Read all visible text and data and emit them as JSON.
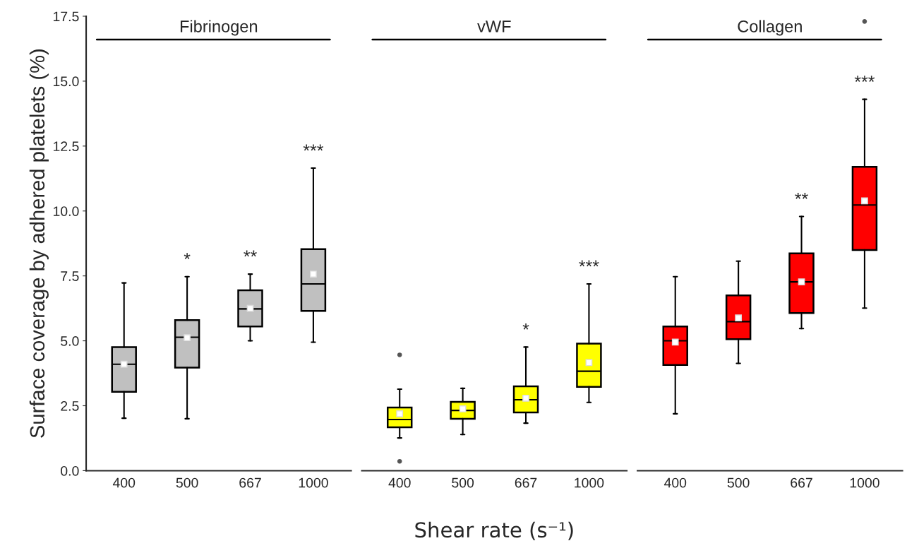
{
  "chart_data": [
    {
      "type": "box",
      "title": "Fibrinogen",
      "ylabel": "Surface coverage by adhered platelets (%)",
      "color": "#c0c0c0",
      "categories": [
        "400",
        "500",
        "667",
        "1000"
      ],
      "boxes": [
        {
          "low": 2.02,
          "q1": 3.04,
          "median": 4.1,
          "q3": 4.76,
          "high": 7.23,
          "mean": 4.1
        },
        {
          "low": 2.0,
          "q1": 3.97,
          "median": 5.14,
          "q3": 5.8,
          "high": 7.47,
          "mean": 5.12
        },
        {
          "low": 5.0,
          "q1": 5.55,
          "median": 6.23,
          "q3": 6.95,
          "high": 7.57,
          "mean": 6.25
        },
        {
          "low": 4.95,
          "q1": 6.15,
          "median": 7.19,
          "q3": 8.53,
          "high": 11.65,
          "mean": 7.57
        }
      ],
      "ref_lines": [
        {
          "axis": "y",
          "value": 16.6,
          "color": "#000000"
        }
      ],
      "annotations": [
        {
          "text": "*",
          "x": "500",
          "y": 7.47
        },
        {
          "text": "**",
          "x": "667",
          "y": 7.57
        },
        {
          "text": "***",
          "x": "1000",
          "y": 11.65
        }
      ],
      "ylim": [
        0,
        17.5
      ],
      "yticks": [
        {
          "value": 0,
          "label": "0.0"
        },
        {
          "value": 2.5,
          "label": "2.5"
        },
        {
          "value": 5,
          "label": "5.0"
        },
        {
          "value": 7.5,
          "label": "7.5"
        },
        {
          "value": 10,
          "label": "10.0"
        },
        {
          "value": 12.5,
          "label": "12.5"
        },
        {
          "value": 15,
          "label": "15.0"
        },
        {
          "value": 17.5,
          "label": "17.5"
        }
      ]
    },
    {
      "type": "box",
      "title": "vWF",
      "xlabel": "Shear rate (s⁻¹)",
      "color": "#ffff00",
      "categories": [
        "400",
        "500",
        "667",
        "1000"
      ],
      "boxes": [
        {
          "low": 1.26,
          "q1": 1.67,
          "median": 1.97,
          "q3": 2.43,
          "high": 3.14,
          "mean": 2.19,
          "outliers": [
            4.46,
            0.36
          ]
        },
        {
          "low": 1.39,
          "q1": 2.0,
          "median": 2.32,
          "q3": 2.65,
          "high": 3.17,
          "mean": 2.38
        },
        {
          "low": 1.83,
          "q1": 2.24,
          "median": 2.73,
          "q3": 3.25,
          "high": 4.76,
          "mean": 2.79
        },
        {
          "low": 2.63,
          "q1": 3.23,
          "median": 3.83,
          "q3": 4.89,
          "high": 7.19,
          "mean": 4.16
        }
      ],
      "ref_lines": [
        {
          "axis": "y",
          "value": 16.6,
          "color": "#000000"
        }
      ],
      "annotations": [
        {
          "text": "*",
          "x": "667",
          "y": 4.76
        },
        {
          "text": "***",
          "x": "1000",
          "y": 7.19
        }
      ],
      "tick_labels": "x",
      "ylim": [
        0,
        17.5
      ]
    },
    {
      "type": "box",
      "title": "Collagen",
      "color": "#ff0000",
      "categories": [
        "400",
        "500",
        "667",
        "1000"
      ],
      "boxes": [
        {
          "low": 2.19,
          "q1": 4.07,
          "median": 5.0,
          "q3": 5.55,
          "high": 7.47,
          "mean": 4.95
        },
        {
          "low": 4.13,
          "q1": 5.06,
          "median": 5.74,
          "q3": 6.75,
          "high": 8.07,
          "mean": 5.88
        },
        {
          "low": 5.47,
          "q1": 6.07,
          "median": 7.27,
          "q3": 8.37,
          "high": 9.79,
          "mean": 7.27
        },
        {
          "low": 6.26,
          "q1": 8.5,
          "median": 10.23,
          "q3": 11.7,
          "high": 14.3,
          "mean": 10.39,
          "outliers": [
            17.3
          ]
        }
      ],
      "ref_lines": [
        {
          "axis": "y",
          "value": 16.6,
          "color": "#000000"
        }
      ],
      "annotations": [
        {
          "text": "**",
          "x": "667",
          "y": 9.79
        },
        {
          "text": "***",
          "x": "1000",
          "y": 14.3
        }
      ],
      "tick_labels": "x",
      "ylim": [
        0,
        17.5
      ]
    }
  ]
}
